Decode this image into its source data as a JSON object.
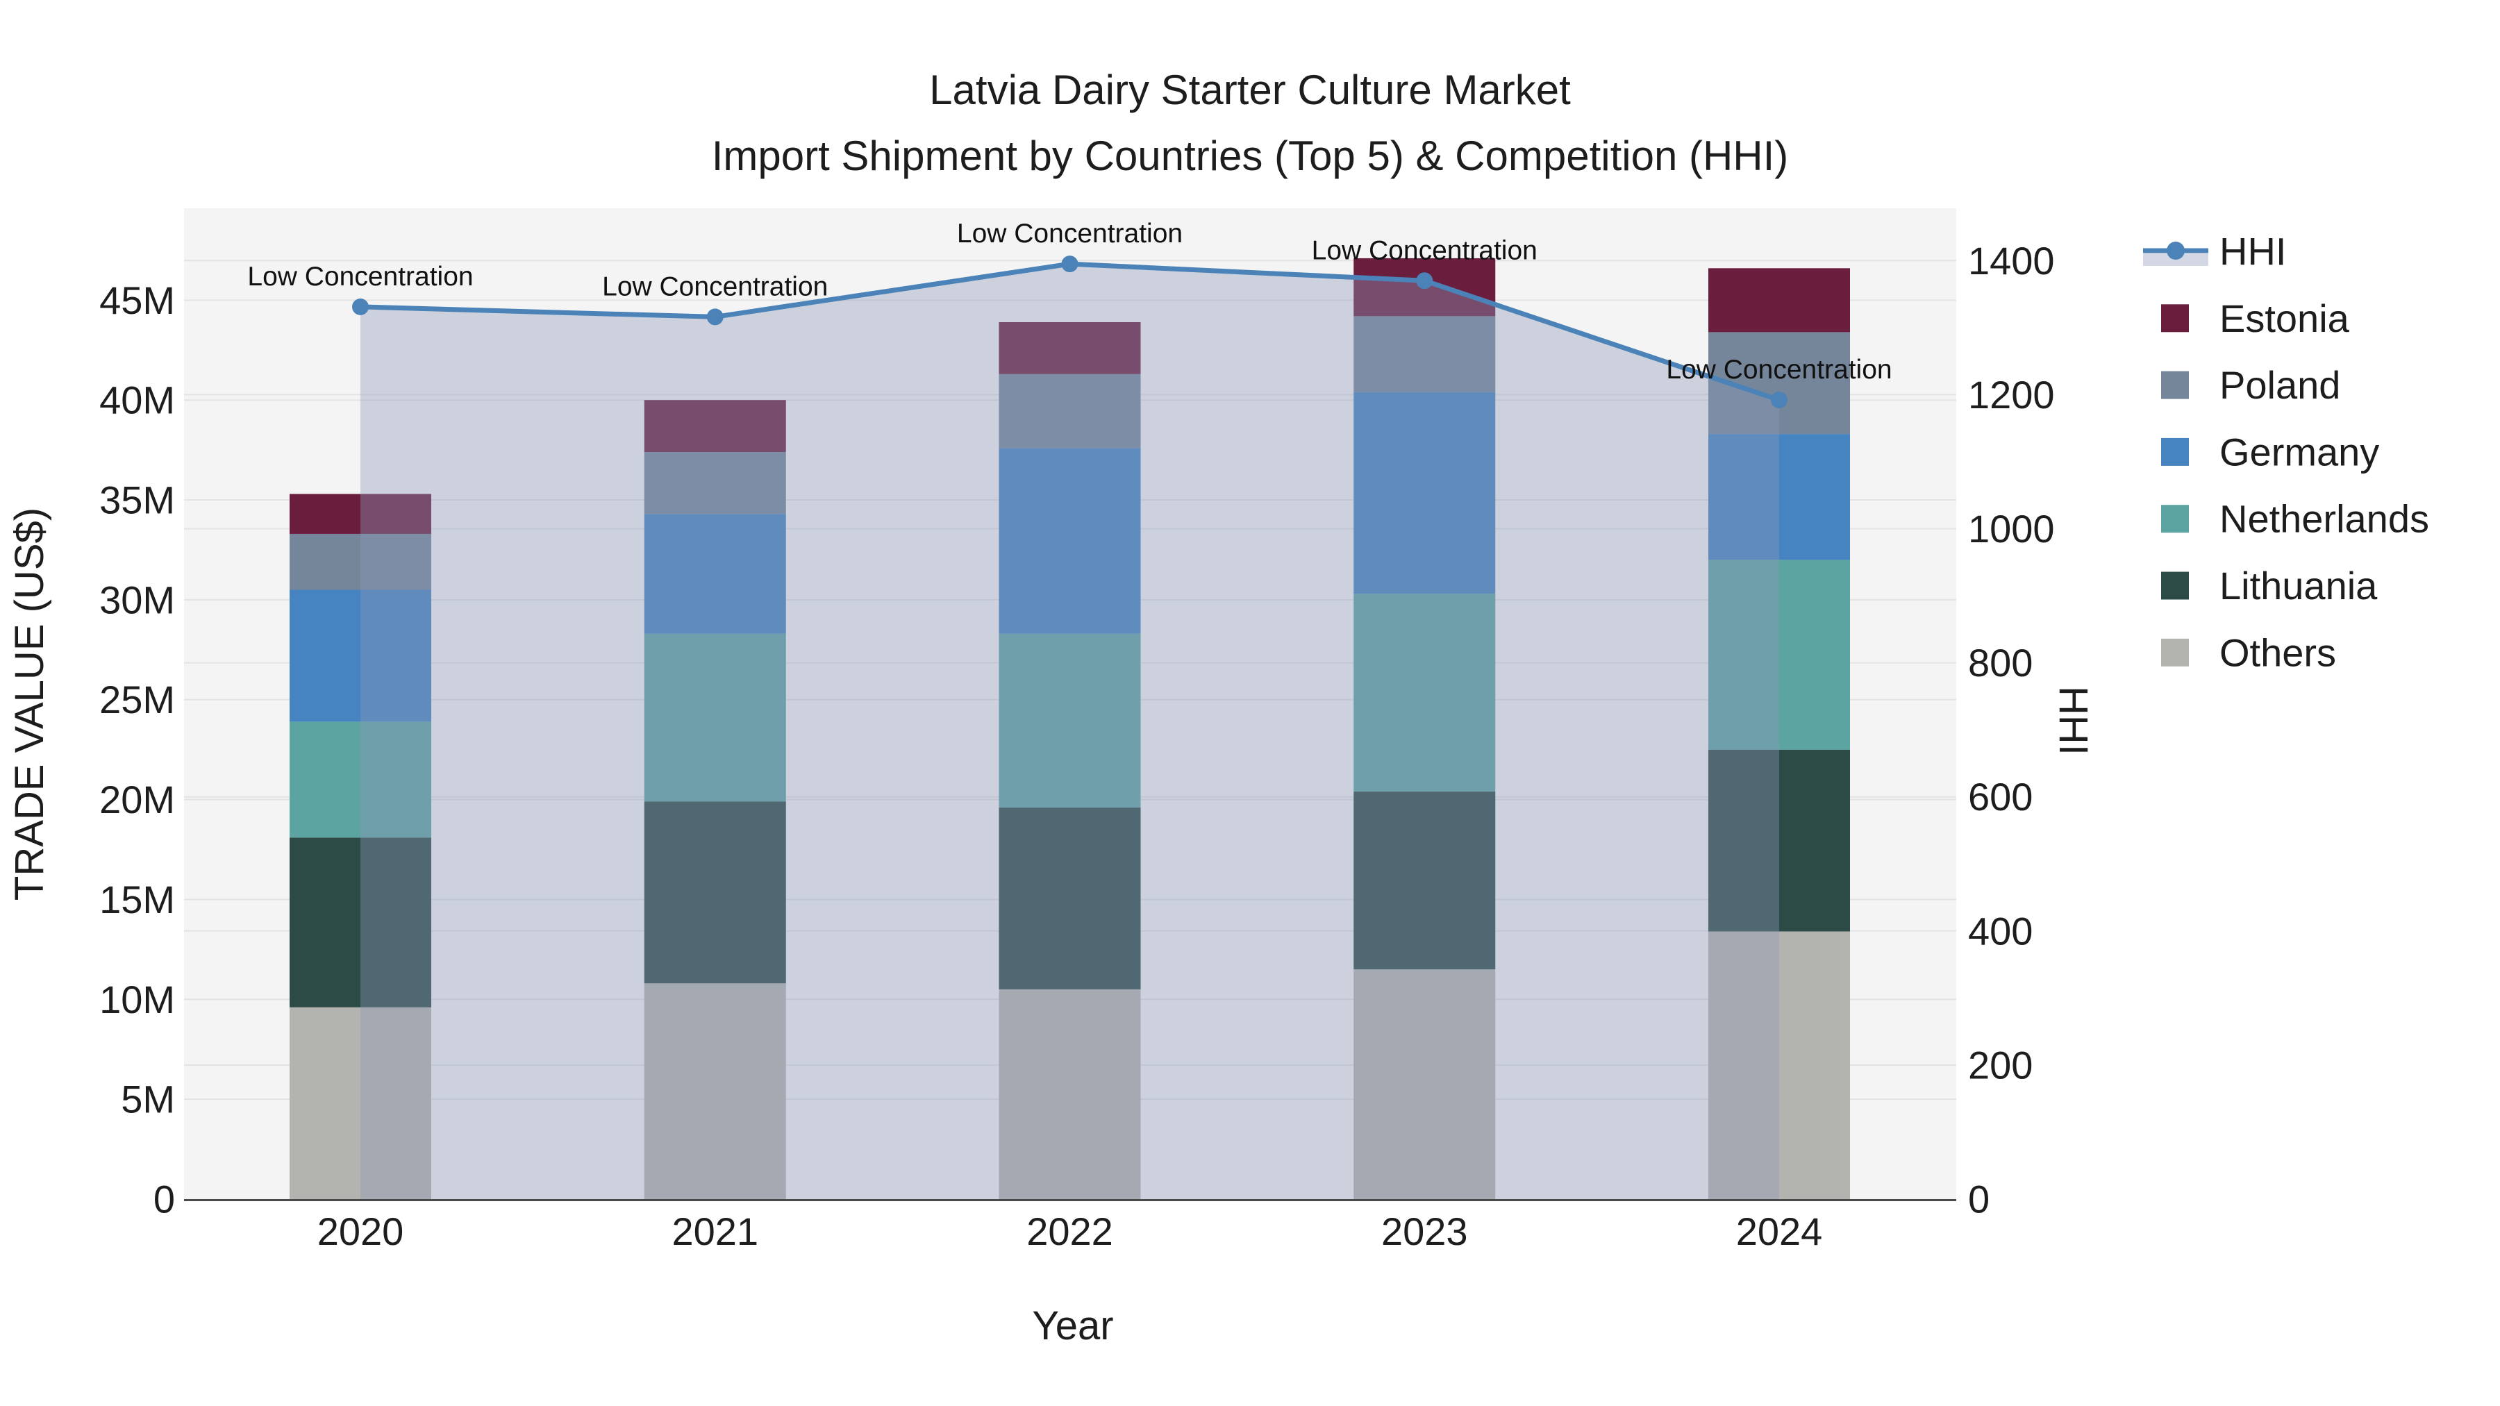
{
  "chart_data": {
    "type": "combo-stacked-bar-line",
    "title_lines": [
      "Latvia Dairy Starter Culture Market",
      "Import Shipment by Countries (Top 5) & Competition (HHI)"
    ],
    "xlabel": "Year",
    "ylabel_left": "TRADE VALUE (US$)",
    "ylabel_right": "HHI",
    "categories": [
      "2020",
      "2021",
      "2022",
      "2023",
      "2024"
    ],
    "bar_value_unit": "million US$",
    "bar_series_bottom_to_top": [
      {
        "name": "Others",
        "color": "#B3B3AF",
        "values": [
          9.6,
          10.8,
          10.5,
          11.5,
          13.4
        ]
      },
      {
        "name": "Lithuania",
        "color": "#2C4B46",
        "values": [
          8.5,
          9.1,
          9.1,
          8.9,
          9.1
        ]
      },
      {
        "name": "Netherlands",
        "color": "#5CA4A2",
        "values": [
          5.8,
          8.4,
          8.7,
          9.9,
          9.5
        ]
      },
      {
        "name": "Germany",
        "color": "#4583C1",
        "values": [
          6.6,
          6.0,
          9.3,
          10.1,
          6.3
        ]
      },
      {
        "name": "Poland",
        "color": "#75869B",
        "values": [
          2.8,
          3.1,
          3.7,
          3.8,
          5.1
        ]
      },
      {
        "name": "Estonia",
        "color": "#6B1D3E",
        "values": [
          2.0,
          2.6,
          2.6,
          2.9,
          3.2
        ]
      }
    ],
    "stacked_totals_by_year": [
      35.3,
      40.0,
      43.9,
      47.1,
      46.6
    ],
    "line_series": {
      "name": "HHI",
      "axis": "right",
      "color": "#4B83B8",
      "area_fill_color": "rgba(140,152,184,0.38)",
      "values": [
        1331,
        1316,
        1395,
        1370,
        1192
      ]
    },
    "annotation_text": "Low Concentration",
    "axis_left": {
      "range": [
        0,
        49.6
      ],
      "tick_values": [
        0,
        5,
        10,
        15,
        20,
        25,
        30,
        35,
        40,
        45
      ],
      "tick_labels": [
        "0",
        "5M",
        "10M",
        "15M",
        "20M",
        "25M",
        "30M",
        "35M",
        "40M",
        "45M"
      ]
    },
    "axis_right": {
      "range": [
        0,
        1478
      ],
      "tick_values": [
        0,
        200,
        400,
        600,
        800,
        1000,
        1200,
        1400
      ],
      "tick_labels": [
        "0",
        "200",
        "400",
        "600",
        "800",
        "1000",
        "1200",
        "1400"
      ]
    },
    "legend_order": [
      "HHI",
      "Estonia",
      "Poland",
      "Germany",
      "Netherlands",
      "Lithuania",
      "Others"
    ],
    "grid": true,
    "legend_position": "right"
  },
  "styles": {
    "page_bg": "#ffffff",
    "plot_bg": "#f4f4f4",
    "grid_color": "#e3e3e3",
    "axis_line_color": "#4a4a4a",
    "text_color": "#1d1d1d"
  }
}
